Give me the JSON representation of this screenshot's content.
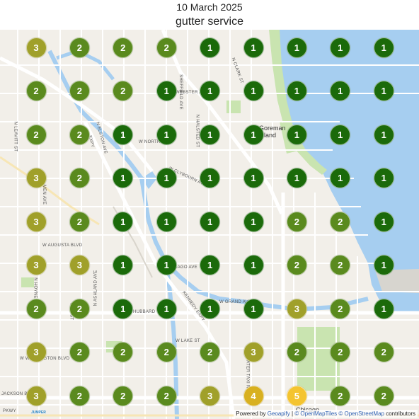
{
  "header": {
    "date": "10 March 2025",
    "title": "gutter service"
  },
  "map": {
    "place_labels": [
      "Goreman Island",
      "Chicago"
    ],
    "street_labels": [
      "W NORTH AVE",
      "N CLARK ST",
      "W WEBSTER AVE",
      "N ELSTON AVE",
      "N HALSTED ST",
      "N LEAVITT ST",
      "W CLYBOURN AVE",
      "W AUGUSTA BLVD",
      "N HOYNE",
      "N ASHLAND AVE",
      "HUBBARD ST",
      "W GRAND AVE",
      "KENNEDY EXPY",
      "W LAKE ST",
      "W WASHINGTON BLVD",
      "JACKSON BLVD",
      "WATER TAXI ROUTE",
      "CAGO AVE",
      "SHEFFIELD AVE",
      "EXPY",
      "MEN AVE",
      "OOD ST",
      "PKWY"
    ],
    "colors": {
      "water": "#a6cef0",
      "land": "#f2efe9",
      "park": "#c9e4b0",
      "road": "#ffffff",
      "major_road": "#f7e6b5"
    }
  },
  "grid": {
    "columns": 9,
    "rows": 9,
    "counts": [
      [
        3,
        2,
        2,
        2,
        1,
        1,
        1,
        1,
        1
      ],
      [
        2,
        2,
        2,
        1,
        1,
        1,
        1,
        1,
        1
      ],
      [
        2,
        2,
        1,
        1,
        1,
        1,
        1,
        1,
        1
      ],
      [
        3,
        2,
        1,
        1,
        1,
        1,
        1,
        1,
        1
      ],
      [
        3,
        2,
        1,
        1,
        1,
        1,
        2,
        2,
        1
      ],
      [
        3,
        3,
        1,
        1,
        1,
        1,
        2,
        2,
        1
      ],
      [
        2,
        2,
        1,
        1,
        1,
        1,
        3,
        2,
        1
      ],
      [
        3,
        2,
        2,
        2,
        2,
        3,
        2,
        2,
        2
      ],
      [
        3,
        2,
        2,
        2,
        3,
        4,
        5,
        2,
        2
      ]
    ],
    "count_colors": {
      "1": "#1b6a0a",
      "2": "#5a8a1e",
      "3": "#a0a02a",
      "4": "#d8b020",
      "5": "#f4c430"
    }
  },
  "logo": {
    "text": "JUMPER"
  },
  "attribution": {
    "prefix": "Powered by",
    "provider": "Geoapify",
    "sep1": "|",
    "tiles": "© OpenMapTiles",
    "osm": "© OpenStreetMap",
    "suffix": "contributors"
  }
}
